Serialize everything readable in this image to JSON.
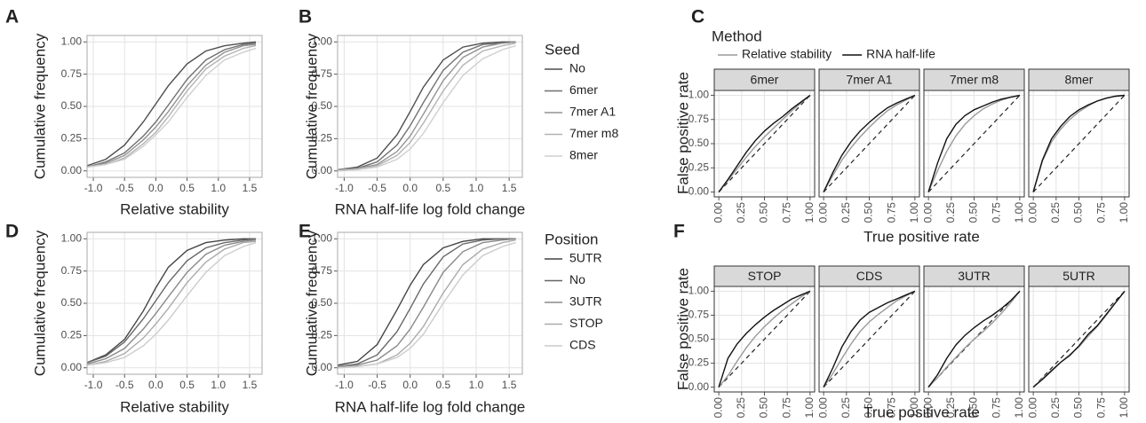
{
  "chart_data": [
    {
      "type": "line",
      "panel": "A",
      "xlabel": "Relative stability",
      "ylabel": "Cumulative frequency",
      "x": [
        -1.1,
        -0.8,
        -0.5,
        -0.2,
        0,
        0.2,
        0.5,
        0.8,
        1.1,
        1.4,
        1.6
      ],
      "series": [
        {
          "color": "#4d4d4d",
          "values": [
            0.04,
            0.09,
            0.2,
            0.38,
            0.52,
            0.66,
            0.83,
            0.93,
            0.97,
            0.99,
            1.0
          ]
        },
        {
          "color": "#707070",
          "values": [
            0.03,
            0.07,
            0.14,
            0.27,
            0.38,
            0.51,
            0.71,
            0.86,
            0.94,
            0.98,
            0.99
          ]
        },
        {
          "color": "#939393",
          "values": [
            0.03,
            0.06,
            0.12,
            0.24,
            0.34,
            0.46,
            0.66,
            0.82,
            0.92,
            0.97,
            0.98
          ]
        },
        {
          "color": "#b3b3b3",
          "values": [
            0.03,
            0.05,
            0.1,
            0.21,
            0.3,
            0.42,
            0.62,
            0.79,
            0.89,
            0.95,
            0.97
          ]
        },
        {
          "color": "#cfcfcf",
          "values": [
            0.03,
            0.05,
            0.09,
            0.19,
            0.28,
            0.38,
            0.57,
            0.74,
            0.86,
            0.92,
            0.95
          ]
        }
      ],
      "xlim": [
        -1.1,
        1.7
      ],
      "ylim": [
        -0.05,
        1.05
      ],
      "xticks": [
        {
          "value": -1,
          "label": "-1.0"
        },
        {
          "value": -0.5,
          "label": "-0.5"
        },
        {
          "value": 0,
          "label": "0.0"
        },
        {
          "value": 0.5,
          "label": "0.5"
        },
        {
          "value": 1,
          "label": "1.0"
        },
        {
          "value": 1.5,
          "label": "1.5"
        }
      ],
      "yticks": [
        {
          "value": 0,
          "label": "0.00"
        },
        {
          "value": 0.25,
          "label": "0.25"
        },
        {
          "value": 0.5,
          "label": "0.50"
        },
        {
          "value": 0.75,
          "label": "0.75"
        },
        {
          "value": 1,
          "label": "1.00"
        }
      ],
      "grid": true
    },
    {
      "type": "line",
      "panel": "B",
      "xlabel": "RNA half-life log fold change",
      "ylabel": "Cumulative frequency",
      "legend_title": "Seed",
      "x": [
        -1.1,
        -0.8,
        -0.5,
        -0.2,
        0,
        0.2,
        0.5,
        0.8,
        1.1,
        1.4,
        1.6
      ],
      "series": [
        {
          "name": "No",
          "color": "#4d4d4d",
          "values": [
            0.01,
            0.03,
            0.1,
            0.28,
            0.46,
            0.65,
            0.86,
            0.96,
            0.99,
            1,
            1
          ]
        },
        {
          "name": "6mer",
          "color": "#707070",
          "values": [
            0.01,
            0.02,
            0.07,
            0.2,
            0.35,
            0.53,
            0.78,
            0.92,
            0.98,
            0.99,
            1
          ]
        },
        {
          "name": "7mer A1",
          "color": "#939393",
          "values": [
            0.01,
            0.02,
            0.05,
            0.15,
            0.27,
            0.44,
            0.7,
            0.88,
            0.96,
            0.99,
            1
          ]
        },
        {
          "name": "7mer m8",
          "color": "#b3b3b3",
          "values": [
            0,
            0.01,
            0.04,
            0.12,
            0.22,
            0.37,
            0.62,
            0.82,
            0.93,
            0.97,
            0.99
          ]
        },
        {
          "name": "8mer",
          "color": "#cfcfcf",
          "values": [
            0,
            0.01,
            0.03,
            0.09,
            0.17,
            0.29,
            0.53,
            0.74,
            0.87,
            0.94,
            0.97
          ]
        }
      ],
      "xlim": [
        -1.1,
        1.7
      ],
      "ylim": [
        -0.05,
        1.05
      ],
      "xticks": [
        {
          "value": -1,
          "label": "-1.0"
        },
        {
          "value": -0.5,
          "label": "-0.5"
        },
        {
          "value": 0,
          "label": "0.0"
        },
        {
          "value": 0.5,
          "label": "0.5"
        },
        {
          "value": 1,
          "label": "1.0"
        },
        {
          "value": 1.5,
          "label": "1.5"
        }
      ],
      "yticks": [
        {
          "value": 0,
          "label": "0.00"
        },
        {
          "value": 0.25,
          "label": "0.25"
        },
        {
          "value": 0.5,
          "label": "0.50"
        },
        {
          "value": 0.75,
          "label": "0.75"
        },
        {
          "value": 1,
          "label": "1.00"
        }
      ],
      "grid": true
    },
    {
      "type": "facet_line",
      "panel": "C",
      "xlabel": "True positive rate",
      "ylabel": "False positive rate",
      "legend_title": "Method",
      "diagonal": true,
      "series": [
        {
          "name": "Relative stability",
          "color": "#9a9a9a"
        },
        {
          "name": "RNA half-life",
          "color": "#111111"
        }
      ],
      "x": [
        0,
        0.1,
        0.2,
        0.3,
        0.4,
        0.5,
        0.6,
        0.7,
        0.8,
        0.9,
        1.0
      ],
      "facets": [
        {
          "title": "6mer",
          "values": [
            [
              0,
              0.12,
              0.24,
              0.36,
              0.47,
              0.57,
              0.66,
              0.75,
              0.84,
              0.92,
              1
            ],
            [
              0,
              0.13,
              0.27,
              0.41,
              0.53,
              0.63,
              0.71,
              0.78,
              0.86,
              0.93,
              1
            ]
          ]
        },
        {
          "title": "7mer A1",
          "values": [
            [
              0,
              0.17,
              0.33,
              0.46,
              0.57,
              0.67,
              0.76,
              0.84,
              0.9,
              0.95,
              1
            ],
            [
              0,
              0.2,
              0.38,
              0.52,
              0.63,
              0.72,
              0.8,
              0.87,
              0.92,
              0.96,
              1
            ]
          ]
        },
        {
          "title": "7mer m8",
          "values": [
            [
              0,
              0.22,
              0.42,
              0.58,
              0.7,
              0.79,
              0.86,
              0.91,
              0.95,
              0.98,
              1
            ],
            [
              0,
              0.3,
              0.55,
              0.7,
              0.79,
              0.85,
              0.89,
              0.93,
              0.96,
              0.98,
              1
            ]
          ]
        },
        {
          "title": "8mer",
          "values": [
            [
              0,
              0.32,
              0.52,
              0.65,
              0.75,
              0.83,
              0.89,
              0.94,
              0.97,
              0.99,
              1
            ],
            [
              0,
              0.33,
              0.55,
              0.68,
              0.78,
              0.85,
              0.9,
              0.94,
              0.97,
              0.99,
              1
            ]
          ]
        }
      ],
      "xlim": [
        -0.05,
        1.05
      ],
      "ylim": [
        -0.05,
        1.05
      ],
      "xticks": [
        {
          "value": 0,
          "label": "0.00"
        },
        {
          "value": 0.25,
          "label": "0.25"
        },
        {
          "value": 0.5,
          "label": "0.50"
        },
        {
          "value": 0.75,
          "label": "0.75"
        },
        {
          "value": 1,
          "label": "1.00"
        }
      ],
      "yticks": [
        {
          "value": 0,
          "label": "0.00"
        },
        {
          "value": 0.25,
          "label": "0.25"
        },
        {
          "value": 0.5,
          "label": "0.50"
        },
        {
          "value": 0.75,
          "label": "0.75"
        },
        {
          "value": 1,
          "label": "1.00"
        }
      ],
      "grid": true
    },
    {
      "type": "line",
      "panel": "D",
      "xlabel": "Relative stability",
      "ylabel": "Cumulative frequency",
      "x": [
        -1.1,
        -0.8,
        -0.5,
        -0.2,
        0,
        0.2,
        0.5,
        0.8,
        1.1,
        1.4,
        1.6
      ],
      "series": [
        {
          "color": "#444444",
          "values": [
            0.04,
            0.1,
            0.22,
            0.44,
            0.62,
            0.78,
            0.91,
            0.97,
            0.99,
            1,
            1
          ]
        },
        {
          "color": "#666666",
          "values": [
            0.04,
            0.09,
            0.2,
            0.38,
            0.52,
            0.66,
            0.83,
            0.93,
            0.97,
            0.99,
            1
          ]
        },
        {
          "color": "#8a8a8a",
          "values": [
            0.03,
            0.07,
            0.15,
            0.3,
            0.42,
            0.55,
            0.74,
            0.88,
            0.95,
            0.98,
            0.99
          ]
        },
        {
          "color": "#ababab",
          "values": [
            0.02,
            0.05,
            0.11,
            0.23,
            0.34,
            0.46,
            0.66,
            0.82,
            0.92,
            0.97,
            0.98
          ]
        },
        {
          "color": "#cccccc",
          "values": [
            0.02,
            0.04,
            0.08,
            0.17,
            0.26,
            0.37,
            0.56,
            0.74,
            0.87,
            0.94,
            0.97
          ]
        }
      ],
      "xlim": [
        -1.1,
        1.7
      ],
      "ylim": [
        -0.05,
        1.05
      ],
      "xticks": [
        {
          "value": -1,
          "label": "-1.0"
        },
        {
          "value": -0.5,
          "label": "-0.5"
        },
        {
          "value": 0,
          "label": "0.0"
        },
        {
          "value": 0.5,
          "label": "0.5"
        },
        {
          "value": 1,
          "label": "1.0"
        },
        {
          "value": 1.5,
          "label": "1.5"
        }
      ],
      "yticks": [
        {
          "value": 0,
          "label": "0.00"
        },
        {
          "value": 0.25,
          "label": "0.25"
        },
        {
          "value": 0.5,
          "label": "0.50"
        },
        {
          "value": 0.75,
          "label": "0.75"
        },
        {
          "value": 1,
          "label": "1.00"
        }
      ],
      "grid": true
    },
    {
      "type": "line",
      "panel": "E",
      "xlabel": "RNA half-life log fold change",
      "ylabel": "Cumulative frequency",
      "legend_title": "Position",
      "x": [
        -1.1,
        -0.8,
        -0.5,
        -0.2,
        0,
        0.2,
        0.5,
        0.8,
        1.1,
        1.4,
        1.6
      ],
      "series": [
        {
          "name": "5UTR",
          "color": "#444444",
          "values": [
            0.02,
            0.05,
            0.18,
            0.45,
            0.64,
            0.8,
            0.93,
            0.98,
            1,
            1,
            1
          ]
        },
        {
          "name": "No",
          "color": "#666666",
          "values": [
            0.01,
            0.03,
            0.1,
            0.28,
            0.46,
            0.65,
            0.86,
            0.96,
            0.99,
            1,
            1
          ]
        },
        {
          "name": "3UTR",
          "color": "#8a8a8a",
          "values": [
            0.01,
            0.02,
            0.06,
            0.17,
            0.3,
            0.47,
            0.74,
            0.9,
            0.97,
            0.99,
            1
          ]
        },
        {
          "name": "STOP",
          "color": "#ababab",
          "values": [
            0,
            0.01,
            0.03,
            0.1,
            0.19,
            0.32,
            0.58,
            0.8,
            0.92,
            0.97,
            0.99
          ]
        },
        {
          "name": "CDS",
          "color": "#cccccc",
          "values": [
            0,
            0.01,
            0.03,
            0.08,
            0.15,
            0.26,
            0.5,
            0.72,
            0.87,
            0.94,
            0.97
          ]
        }
      ],
      "xlim": [
        -1.1,
        1.7
      ],
      "ylim": [
        -0.05,
        1.05
      ],
      "xticks": [
        {
          "value": -1,
          "label": "-1.0"
        },
        {
          "value": -0.5,
          "label": "-0.5"
        },
        {
          "value": 0,
          "label": "0.0"
        },
        {
          "value": 0.5,
          "label": "0.5"
        },
        {
          "value": 1,
          "label": "1.0"
        },
        {
          "value": 1.5,
          "label": "1.5"
        }
      ],
      "yticks": [
        {
          "value": 0,
          "label": "0.00"
        },
        {
          "value": 0.25,
          "label": "0.25"
        },
        {
          "value": 0.5,
          "label": "0.50"
        },
        {
          "value": 0.75,
          "label": "0.75"
        },
        {
          "value": 1,
          "label": "1.00"
        }
      ],
      "grid": true
    },
    {
      "type": "facet_line",
      "panel": "F",
      "xlabel": "True positive rate",
      "ylabel": "False positive rate",
      "diagonal": true,
      "series": [
        {
          "color": "#9a9a9a"
        },
        {
          "color": "#111111"
        }
      ],
      "x": [
        0,
        0.1,
        0.2,
        0.3,
        0.4,
        0.5,
        0.6,
        0.7,
        0.8,
        0.9,
        1.0
      ],
      "facets": [
        {
          "title": "STOP",
          "values": [
            [
              0,
              0.12,
              0.27,
              0.41,
              0.53,
              0.63,
              0.72,
              0.8,
              0.87,
              0.94,
              1
            ],
            [
              0,
              0.3,
              0.45,
              0.56,
              0.65,
              0.73,
              0.8,
              0.86,
              0.92,
              0.96,
              1
            ]
          ]
        },
        {
          "title": "CDS",
          "values": [
            [
              0,
              0.14,
              0.3,
              0.45,
              0.58,
              0.68,
              0.76,
              0.83,
              0.9,
              0.95,
              1
            ],
            [
              0,
              0.2,
              0.42,
              0.58,
              0.7,
              0.78,
              0.83,
              0.88,
              0.92,
              0.96,
              1
            ]
          ]
        },
        {
          "title": "3UTR",
          "values": [
            [
              0,
              0.1,
              0.21,
              0.31,
              0.41,
              0.5,
              0.58,
              0.67,
              0.77,
              0.88,
              1
            ],
            [
              0,
              0.13,
              0.3,
              0.44,
              0.54,
              0.62,
              0.69,
              0.75,
              0.82,
              0.9,
              1
            ]
          ]
        },
        {
          "title": "5UTR",
          "values": [
            [
              0,
              0.09,
              0.18,
              0.26,
              0.34,
              0.42,
              0.53,
              0.63,
              0.75,
              0.88,
              1
            ],
            [
              0,
              0.08,
              0.17,
              0.26,
              0.33,
              0.43,
              0.55,
              0.64,
              0.76,
              0.88,
              1
            ]
          ]
        }
      ],
      "xlim": [
        -0.05,
        1.05
      ],
      "ylim": [
        -0.05,
        1.05
      ],
      "xticks": [
        {
          "value": 0,
          "label": "0.00"
        },
        {
          "value": 0.25,
          "label": "0.25"
        },
        {
          "value": 0.5,
          "label": "0.50"
        },
        {
          "value": 0.75,
          "label": "0.75"
        },
        {
          "value": 1,
          "label": "1.00"
        }
      ],
      "yticks": [
        {
          "value": 0,
          "label": "0.00"
        },
        {
          "value": 0.25,
          "label": "0.25"
        },
        {
          "value": 0.5,
          "label": "0.50"
        },
        {
          "value": 0.75,
          "label": "0.75"
        },
        {
          "value": 1,
          "label": "1.00"
        }
      ],
      "grid": true
    }
  ]
}
